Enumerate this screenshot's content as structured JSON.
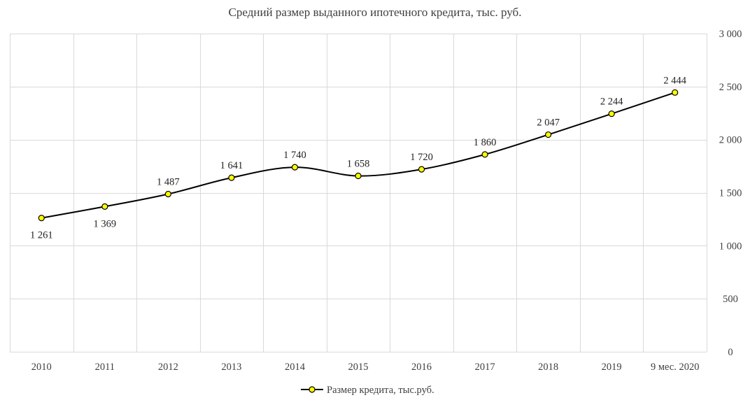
{
  "chart_data": {
    "type": "line",
    "title": "Средний размер выданного ипотечного кредита, тыс. руб.",
    "categories": [
      "2010",
      "2011",
      "2012",
      "2013",
      "2014",
      "2015",
      "2016",
      "2017",
      "2018",
      "2019",
      "9 мес. 2020"
    ],
    "series": [
      {
        "name": "Размер кредита, тыс.руб.",
        "values": [
          1261,
          1369,
          1487,
          1641,
          1740,
          1658,
          1720,
          1860,
          2047,
          2244,
          2444
        ],
        "data_labels": [
          "1 261",
          "1 369",
          "1 487",
          "1 641",
          "1 740",
          "1 658",
          "1 720",
          "1 860",
          "2 047",
          "2 244",
          "2 444"
        ],
        "line_color": "#000000",
        "marker_color": "#ffff00",
        "smooth": true
      }
    ],
    "ylim": [
      0,
      3000
    ],
    "y_ticks": [
      0,
      500,
      1000,
      1500,
      2000,
      2500,
      3000
    ],
    "y_tick_labels": [
      "0",
      "500",
      "1 000",
      "1 500",
      "2 000",
      "2 500",
      "3 000"
    ],
    "y_axis_side": "right",
    "grid": true,
    "legend_position": "bottom"
  }
}
